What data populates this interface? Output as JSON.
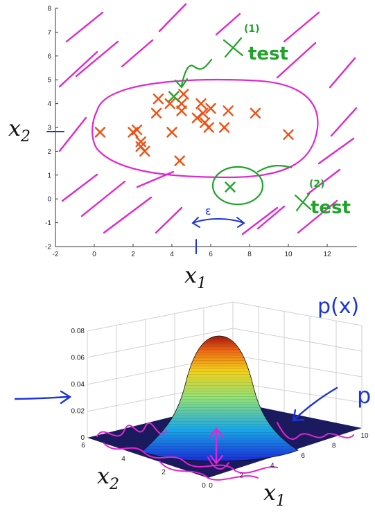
{
  "colors": {
    "anomaly_marker": "#f04f12",
    "test_marker": "#1fa329",
    "ellipse_ink": "#e026d0",
    "hatch_ink": "#e026d0",
    "annotation_green": "#1fa329",
    "annotation_blue": "#1b35d6",
    "surface_floor": "#1c1a5e"
  },
  "chart_data": [
    {
      "type": "scatter",
      "xlabel": "x1",
      "ylabel": "x2",
      "xlim": [
        -2,
        13
      ],
      "ylim": [
        -2,
        8
      ],
      "xticks": [
        "-2",
        "0",
        "2",
        "4",
        "6",
        "8",
        "10",
        "12"
      ],
      "yticks": [
        "-2",
        "-1",
        "0",
        "1",
        "2",
        "3",
        "4",
        "5",
        "6",
        "7",
        "8"
      ],
      "grid": false,
      "series": [
        {
          "marker": "x",
          "color": "#f04f12",
          "points": [
            [
              0.3,
              2.8
            ],
            [
              2.0,
              2.8
            ],
            [
              2.2,
              2.9
            ],
            [
              2.4,
              2.2
            ],
            [
              2.6,
              2.0
            ],
            [
              2.4,
              2.4
            ],
            [
              3.3,
              4.2
            ],
            [
              3.2,
              3.6
            ],
            [
              4.0,
              2.8
            ],
            [
              3.9,
              4.0
            ],
            [
              4.5,
              4.0
            ],
            [
              4.6,
              4.4
            ],
            [
              4.5,
              3.7
            ],
            [
              5.3,
              3.4
            ],
            [
              5.5,
              4.0
            ],
            [
              5.6,
              3.6
            ],
            [
              5.7,
              3.2
            ],
            [
              5.9,
              3.0
            ],
            [
              6.0,
              3.8
            ],
            [
              6.7,
              3.0
            ],
            [
              6.9,
              3.7
            ],
            [
              8.3,
              3.6
            ],
            [
              10.0,
              2.7
            ],
            [
              4.4,
              1.6
            ]
          ]
        },
        {
          "marker": "x",
          "color": "#1fa329",
          "points": [
            [
              4.1,
              4.3
            ],
            [
              7.0,
              0.5
            ]
          ]
        }
      ],
      "annotations": {
        "test1_sup": "(1)",
        "test2_sup": "(2)",
        "test_word": "test",
        "epsilon": "ε"
      }
    },
    {
      "type": "surface",
      "title_annotation": "p(x)",
      "side_annotation": "p",
      "xlabel": "x1",
      "ylabel": "x2",
      "zlim": [
        0,
        0.08
      ],
      "zticks": [
        "0",
        "0.02",
        "0.04",
        "0.06",
        "0.08"
      ],
      "x1ticks": [
        "0",
        "2",
        "4",
        "6",
        "8",
        "10"
      ],
      "x2ticks": [
        "0",
        "2",
        "4",
        "6"
      ],
      "colormap": "jet",
      "peak": 0.075
    }
  ]
}
